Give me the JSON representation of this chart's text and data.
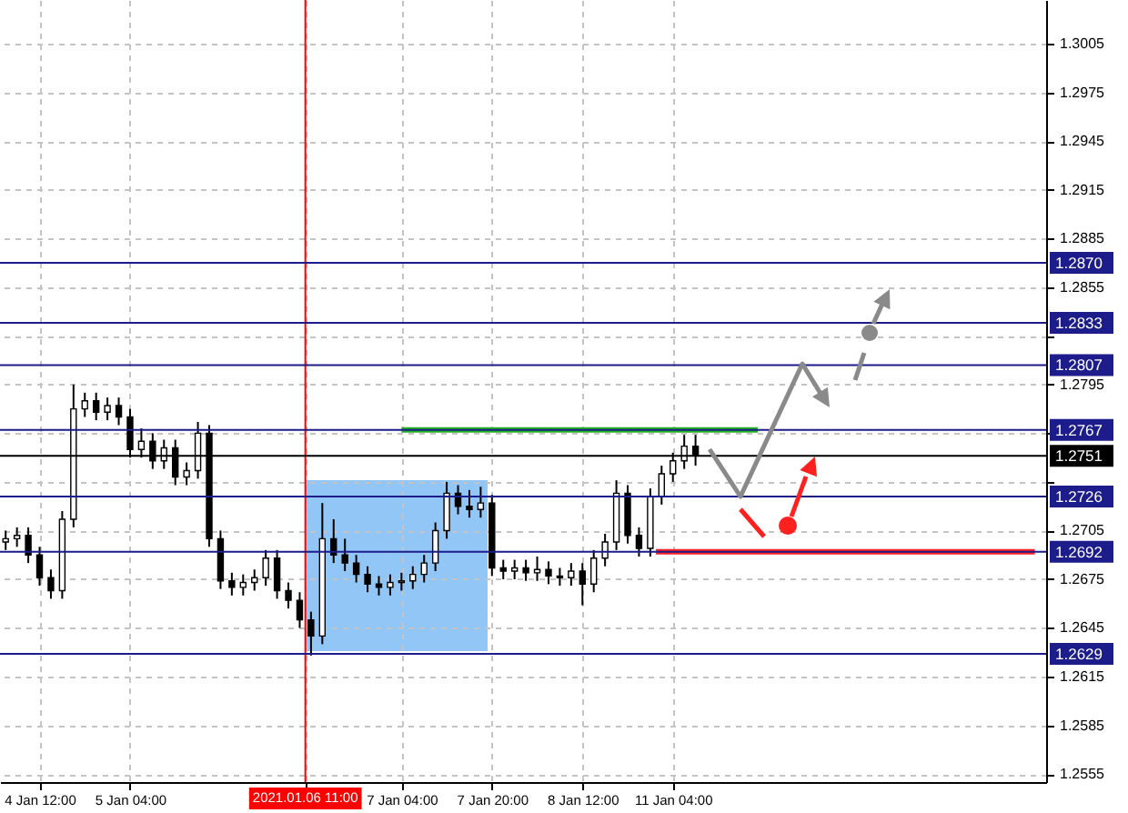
{
  "chart_data": {
    "type": "candlestick",
    "grid": true,
    "ylim": [
      1.255,
      1.3032
    ],
    "yticks": [
      1.3005,
      1.2975,
      1.2945,
      1.2915,
      1.2885,
      1.2855,
      {
        "value": 1.2825,
        "label": null
      },
      1.2795,
      {
        "value": 1.2765,
        "label": null
      },
      {
        "value": 1.2735,
        "label": null
      },
      1.2705,
      1.2675,
      1.2645,
      1.2615,
      1.2585,
      1.2555
    ],
    "categories": [
      null,
      null,
      null,
      null,
      null,
      null,
      null,
      "4 Jan 12:00",
      null,
      null,
      null,
      null,
      null,
      null,
      null,
      null,
      null,
      null,
      null,
      null,
      null,
      null,
      null,
      "5 Jan 04:00",
      null,
      null,
      null,
      null,
      null,
      null,
      null,
      null,
      null,
      null,
      null,
      null,
      null,
      null,
      null,
      null,
      null,
      null,
      null,
      null,
      null,
      null,
      null,
      null,
      null,
      null,
      null,
      null,
      null,
      null,
      "2021.01.06 11:00",
      null,
      null,
      null,
      null,
      null,
      null,
      null,
      null,
      null,
      null,
      null,
      null,
      null,
      null,
      null,
      null,
      "7 Jan 04:00",
      null,
      null,
      null,
      null,
      null,
      null,
      null,
      null,
      null,
      null,
      null,
      null,
      null,
      null,
      null,
      "7 Jan 20:00",
      null,
      null,
      null,
      null,
      null,
      null,
      null,
      null,
      null,
      null,
      null,
      null,
      null,
      null,
      null,
      "8 Jan 12:00",
      null,
      null,
      null,
      null,
      null,
      null,
      null,
      null,
      null,
      null,
      null,
      null,
      null,
      null,
      null,
      "11 Jan 04:00",
      null,
      null,
      null,
      null,
      null,
      null,
      null,
      null,
      null,
      null,
      null,
      null,
      null,
      null,
      null,
      null,
      null,
      null,
      null,
      null,
      null,
      null,
      null,
      null,
      null,
      null,
      null,
      null,
      null,
      null,
      null,
      null,
      null,
      null,
      null,
      null,
      null,
      null,
      null,
      null,
      null,
      null,
      null,
      null,
      null,
      null,
      null,
      null,
      null,
      null,
      null,
      null,
      null,
      null,
      null,
      null,
      null,
      null,
      null,
      null,
      null,
      null,
      null,
      null,
      null,
      null
    ],
    "ohlc": [
      null,
      [
        1.2698,
        1.2705,
        1.2693,
        1.27
      ],
      null,
      [
        1.27,
        1.2707,
        1.2695,
        1.2702
      ],
      null,
      [
        1.2702,
        1.2707,
        1.2685,
        1.269
      ],
      null,
      [
        1.269,
        1.2695,
        1.2671,
        1.2676
      ],
      null,
      [
        1.2676,
        1.2681,
        1.2663,
        1.2668
      ],
      null,
      [
        1.2668,
        1.2717,
        1.2663,
        1.2712
      ],
      null,
      [
        1.2712,
        1.2795,
        1.2707,
        1.278
      ],
      null,
      [
        1.278,
        1.279,
        1.2775,
        1.2785
      ],
      null,
      [
        1.2785,
        1.279,
        1.2773,
        1.2778
      ],
      null,
      [
        1.2778,
        1.2787,
        1.2773,
        1.2782
      ],
      null,
      [
        1.2782,
        1.2787,
        1.277,
        1.2775
      ],
      null,
      [
        1.2775,
        1.278,
        1.275,
        1.2755
      ],
      null,
      [
        1.2755,
        1.2768,
        1.275,
        1.276
      ],
      null,
      [
        1.276,
        1.2765,
        1.2743,
        1.2748
      ],
      null,
      [
        1.2748,
        1.2761,
        1.2743,
        1.2756
      ],
      null,
      [
        1.2756,
        1.2761,
        1.2733,
        1.2738
      ],
      null,
      [
        1.2738,
        1.2747,
        1.2733,
        1.2742
      ],
      null,
      [
        1.2742,
        1.2772,
        1.2737,
        1.2765
      ],
      null,
      [
        1.2765,
        1.277,
        1.2695,
        1.27
      ],
      null,
      [
        1.27,
        1.2705,
        1.2669,
        1.2674
      ],
      null,
      [
        1.2674,
        1.2679,
        1.2665,
        1.267
      ],
      null,
      [
        1.267,
        1.2678,
        1.2665,
        1.2673
      ],
      null,
      [
        1.2673,
        1.2681,
        1.2668,
        1.2676
      ],
      null,
      [
        1.2676,
        1.2693,
        1.2671,
        1.2688
      ],
      null,
      [
        1.2688,
        1.2693,
        1.2663,
        1.2668
      ],
      null,
      [
        1.2668,
        1.2673,
        1.2657,
        1.2662
      ],
      null,
      [
        1.2662,
        1.2667,
        1.2645,
        1.265
      ],
      null,
      [
        1.265,
        1.2655,
        1.2628,
        1.264
      ],
      null,
      [
        1.264,
        1.2722,
        1.2635,
        1.27
      ],
      null,
      [
        1.27,
        1.2712,
        1.2685,
        1.269
      ],
      null,
      [
        1.269,
        1.27,
        1.268,
        1.2685
      ],
      null,
      [
        1.2685,
        1.269,
        1.2673,
        1.2678
      ],
      null,
      [
        1.2678,
        1.2683,
        1.2667,
        1.2672
      ],
      null,
      [
        1.2672,
        1.2677,
        1.2665,
        1.267
      ],
      null,
      [
        1.267,
        1.2678,
        1.2665,
        1.2673
      ],
      null,
      [
        1.2673,
        1.2679,
        1.2668,
        1.2674
      ],
      null,
      [
        1.2674,
        1.2683,
        1.2669,
        1.2678
      ],
      null,
      [
        1.2678,
        1.269,
        1.2673,
        1.2685
      ],
      null,
      [
        1.2685,
        1.271,
        1.268,
        1.2705
      ],
      null,
      [
        1.2705,
        1.2735,
        1.27,
        1.2728
      ],
      null,
      [
        1.2728,
        1.2733,
        1.2715,
        1.272
      ],
      null,
      [
        1.272,
        1.273,
        1.2713,
        1.2718
      ],
      null,
      [
        1.2718,
        1.2732,
        1.2713,
        1.2722
      ],
      null,
      [
        1.2722,
        1.2727,
        1.2677,
        1.2682
      ],
      null,
      [
        1.2682,
        1.2687,
        1.2675,
        1.268
      ],
      null,
      [
        1.268,
        1.2687,
        1.2675,
        1.2682
      ],
      null,
      [
        1.2682,
        1.2687,
        1.2674,
        1.2679
      ],
      null,
      [
        1.2679,
        1.2689,
        1.2674,
        1.2681
      ],
      null,
      [
        1.2681,
        1.2686,
        1.2672,
        1.2677
      ],
      null,
      [
        1.2677,
        1.2682,
        1.2671,
        1.2676
      ],
      null,
      [
        1.2676,
        1.2685,
        1.2671,
        1.268
      ],
      null,
      [
        1.268,
        1.2685,
        1.2659,
        1.2672
      ],
      null,
      [
        1.2672,
        1.2693,
        1.2667,
        1.2688
      ],
      null,
      [
        1.2688,
        1.2703,
        1.2683,
        1.2698
      ],
      null,
      [
        1.2698,
        1.2736,
        1.2693,
        1.2728
      ],
      null,
      [
        1.2728,
        1.2733,
        1.2697,
        1.2702
      ],
      null,
      [
        1.2702,
        1.2707,
        1.2689,
        1.2694
      ],
      null,
      [
        1.2694,
        1.2731,
        1.2689,
        1.2726
      ],
      null,
      [
        1.2726,
        1.2745,
        1.2721,
        1.274
      ],
      null,
      [
        1.274,
        1.2753,
        1.2735,
        1.2748
      ],
      null,
      [
        1.2748,
        1.2764,
        1.2743,
        1.2757
      ],
      null,
      [
        1.2757,
        1.2764,
        1.2745,
        1.2751
      ],
      null,
      null,
      null,
      null,
      null,
      null,
      null,
      null,
      null,
      null,
      null,
      null,
      null,
      null,
      null,
      null,
      null,
      null,
      null,
      null,
      null,
      null,
      null,
      null,
      null,
      null,
      null,
      null,
      null,
      null,
      null,
      null,
      null,
      null,
      null,
      null,
      null,
      null,
      null,
      null,
      null,
      null,
      null,
      null,
      null,
      null,
      null,
      null,
      null,
      null,
      null,
      null,
      null,
      null,
      null,
      null,
      null,
      null,
      null,
      null,
      null,
      null
    ],
    "series": [
      {
        "type": "line",
        "color": "#22b022",
        "values": [
          null,
          null,
          null,
          null,
          null,
          null,
          null,
          null,
          null,
          null,
          null,
          null,
          null,
          null,
          null,
          null,
          null,
          null,
          null,
          null,
          null,
          null,
          null,
          null,
          null,
          null,
          null,
          null,
          null,
          null,
          null,
          null,
          null,
          null,
          null,
          null,
          null,
          null,
          null,
          null,
          null,
          null,
          null,
          null,
          null,
          null,
          null,
          null,
          null,
          null,
          null,
          null,
          null,
          null,
          null,
          null,
          null,
          null,
          null,
          null,
          null,
          null,
          null,
          null,
          null,
          null,
          null,
          null,
          null,
          null,
          null,
          1.2767,
          1.2767,
          1.2767,
          1.2767,
          1.2767,
          1.2767,
          1.2767,
          1.2767,
          1.2767,
          1.2767,
          1.2767,
          1.2767,
          1.2767,
          1.2767,
          1.2767,
          1.2767,
          1.2767,
          1.2767,
          1.2767,
          1.2767,
          1.2767,
          1.2767,
          1.2767,
          1.2767,
          1.2767,
          1.2767,
          1.2767,
          1.2767,
          1.2767,
          1.2767,
          1.2767,
          1.2767,
          1.2767,
          1.2767,
          1.2767,
          1.2767,
          1.2767,
          1.2767,
          1.2767,
          1.2767,
          1.2767,
          1.2767,
          1.2767,
          1.2767,
          1.2767,
          1.2767,
          1.2767,
          1.2767,
          1.2767,
          1.2767,
          1.2767,
          1.2767,
          1.2767,
          1.2767,
          1.2767,
          1.2767,
          1.2767,
          1.2767,
          1.2767,
          1.2767,
          1.2767,
          1.2767,
          1.2767,
          1.2767,
          null,
          null,
          null,
          null,
          null,
          null,
          null,
          null,
          null,
          null,
          null,
          null,
          null,
          null,
          null,
          null,
          null,
          null,
          null,
          null,
          null,
          null,
          null,
          null,
          null,
          null,
          null,
          null,
          null,
          null,
          null,
          null,
          null,
          null,
          null,
          null,
          null,
          null,
          null,
          null,
          null,
          null,
          null,
          null,
          null,
          null,
          null,
          null,
          null,
          null,
          null
        ]
      },
      {
        "type": "line",
        "color": "#ff2020",
        "values": [
          null,
          null,
          null,
          null,
          null,
          null,
          null,
          null,
          null,
          null,
          null,
          null,
          null,
          null,
          null,
          null,
          null,
          null,
          null,
          null,
          null,
          null,
          null,
          null,
          null,
          null,
          null,
          null,
          null,
          null,
          null,
          null,
          null,
          null,
          null,
          null,
          null,
          null,
          null,
          null,
          null,
          null,
          null,
          null,
          null,
          null,
          null,
          null,
          null,
          null,
          null,
          null,
          null,
          null,
          null,
          null,
          null,
          null,
          null,
          null,
          null,
          null,
          null,
          null,
          null,
          null,
          null,
          null,
          null,
          null,
          null,
          null,
          null,
          null,
          null,
          null,
          null,
          null,
          null,
          null,
          null,
          null,
          null,
          null,
          null,
          null,
          null,
          null,
          null,
          null,
          null,
          null,
          null,
          null,
          null,
          null,
          null,
          null,
          null,
          null,
          null,
          null,
          null,
          null,
          null,
          null,
          null,
          null,
          null,
          null,
          null,
          null,
          null,
          null,
          null,
          null,
          1.2692,
          1.2692,
          1.2692,
          1.2692,
          1.2692,
          1.2692,
          1.2692,
          1.2692,
          1.2692,
          1.2692,
          1.2692,
          1.2692,
          1.2692,
          1.2692,
          1.2692,
          1.2692,
          1.2692,
          1.2692,
          1.2692,
          1.2692,
          1.2692,
          1.2692,
          1.2692,
          1.2692,
          1.2692,
          1.2692,
          1.2692,
          1.2692,
          1.2692,
          1.2692,
          1.2692,
          1.2692,
          1.2692,
          1.2692,
          1.2692,
          1.2692,
          1.2692,
          1.2692,
          1.2692,
          1.2692,
          1.2692,
          1.2692,
          1.2692,
          1.2692,
          1.2692,
          1.2692,
          1.2692,
          1.2692,
          1.2692,
          1.2692,
          1.2692,
          1.2692,
          1.2692,
          1.2692,
          1.2692,
          1.2692,
          1.2692,
          1.2692,
          1.2692,
          1.2692,
          1.2692,
          1.2692,
          1.2692,
          1.2692,
          1.2692,
          1.2692,
          1.2692,
          1.2692,
          null,
          null
        ]
      }
    ],
    "ref_lines": [
      {
        "axis": "y",
        "value": 1.287,
        "label": "1.2870",
        "color": "#1c1c8a"
      },
      {
        "axis": "y",
        "value": 1.2833,
        "label": "1.2833",
        "color": "#1c1c8a"
      },
      {
        "axis": "y",
        "value": 1.2807,
        "label": "1.2807",
        "color": "#1c1c8a"
      },
      {
        "axis": "y",
        "value": 1.2767,
        "label": "1.2767",
        "color": "#1c1c8a"
      },
      {
        "axis": "y",
        "value": 1.2751,
        "label": "1.2751",
        "color": "#000000"
      },
      {
        "axis": "y",
        "value": 1.2726,
        "label": "1.2726",
        "color": "#1c1c8a"
      },
      {
        "axis": "y",
        "value": 1.2692,
        "label": "1.2692",
        "color": "#1c1c8a"
      },
      {
        "axis": "y",
        "value": 1.2629,
        "label": "1.2629",
        "color": "#1c1c8a"
      },
      {
        "axis": "x",
        "value": "2021.01.06 11:00",
        "color": "#ff0000"
      }
    ]
  }
}
